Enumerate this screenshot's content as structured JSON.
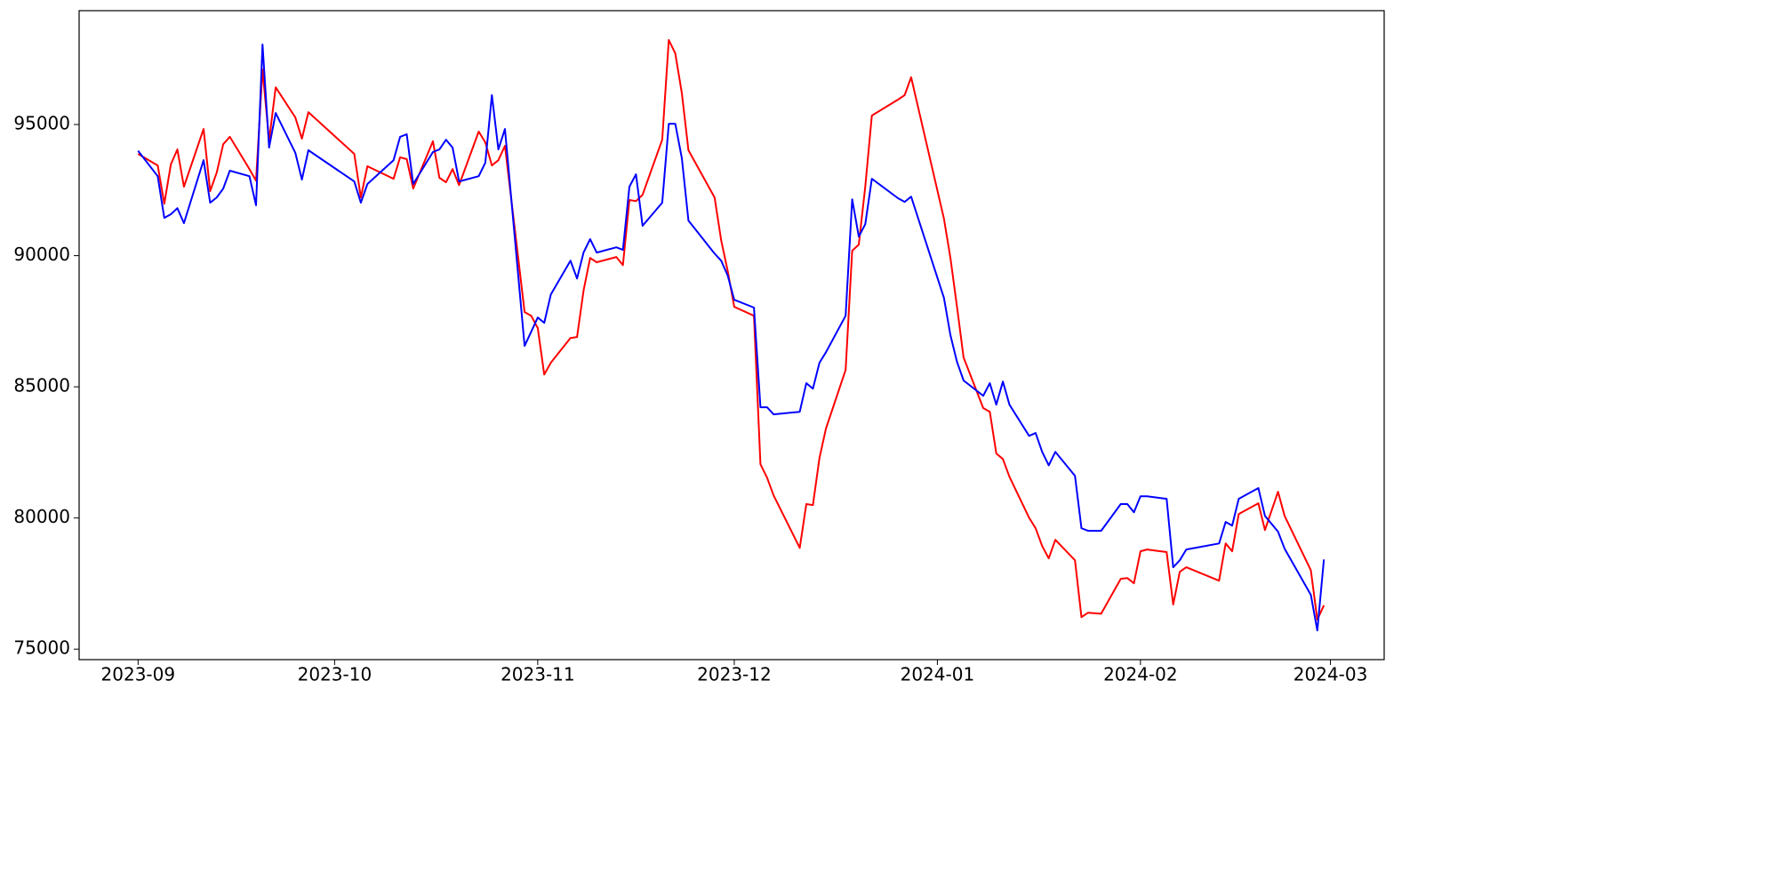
{
  "chart_data": {
    "type": "line",
    "x": [
      0,
      3,
      4,
      5,
      6,
      7,
      10,
      11,
      12,
      13,
      14,
      17,
      18,
      19,
      20,
      21,
      24,
      25,
      26,
      33,
      34,
      35,
      39,
      40,
      41,
      42,
      45,
      46,
      47,
      48,
      49,
      52,
      53,
      54,
      55,
      56,
      59,
      60,
      61,
      62,
      63,
      66,
      67,
      68,
      69,
      70,
      73,
      74,
      75,
      76,
      77,
      80,
      81,
      82,
      83,
      84,
      88,
      89,
      90,
      91,
      94,
      95,
      96,
      97,
      101,
      102,
      103,
      104,
      105,
      108,
      109,
      110,
      111,
      112,
      116,
      117,
      118,
      123,
      124,
      125,
      126,
      129,
      130,
      131,
      132,
      133,
      136,
      137,
      138,
      139,
      140,
      143,
      144,
      145,
      147,
      150,
      151,
      152,
      153,
      154,
      157,
      158,
      159,
      160,
      165,
      166,
      167,
      168,
      171,
      172,
      174,
      175,
      179,
      180,
      181
    ],
    "series": [
      {
        "color": "#ff0000",
        "values": [
          93880,
          93440,
          91980,
          93480,
          94050,
          92630,
          94830,
          92460,
          93170,
          94250,
          94530,
          93300,
          92860,
          97100,
          94390,
          96420,
          95270,
          94460,
          95470,
          93880,
          92220,
          93410,
          92930,
          93750,
          93680,
          92560,
          94360,
          92970,
          92800,
          93300,
          92690,
          94730,
          94320,
          93440,
          93640,
          94190,
          87850,
          87710,
          87240,
          85470,
          85920,
          86860,
          86900,
          88660,
          89910,
          89750,
          89950,
          89640,
          92120,
          92080,
          92320,
          94420,
          98220,
          97710,
          96190,
          94020,
          92220,
          90590,
          89410,
          88050,
          87710,
          82050,
          81540,
          80860,
          78860,
          80530,
          80490,
          82290,
          83410,
          85640,
          90190,
          90420,
          92630,
          95340,
          95950,
          96120,
          96800,
          91410,
          89910,
          88050,
          86120,
          84190,
          84050,
          82460,
          82250,
          81570,
          80010,
          79610,
          78930,
          78460,
          79170,
          78390,
          76220,
          76390,
          76350,
          77680,
          77710,
          77510,
          78730,
          78800,
          78700,
          76700,
          77950,
          78120,
          77610,
          79030,
          78730,
          80150,
          80560,
          79540,
          81000,
          80080,
          78010,
          76120,
          76670
        ]
      },
      {
        "color": "#0000ff",
        "values": [
          94000,
          93030,
          91440,
          91580,
          91810,
          91240,
          93640,
          92020,
          92220,
          92560,
          93240,
          93030,
          91920,
          98050,
          94120,
          95440,
          93920,
          92900,
          94020,
          92830,
          92020,
          92730,
          93640,
          94530,
          94630,
          92730,
          93950,
          94050,
          94420,
          94120,
          92830,
          93030,
          93540,
          96120,
          94050,
          94830,
          86560,
          87100,
          87640,
          87440,
          88520,
          89810,
          89130,
          90120,
          90630,
          90120,
          90320,
          90220,
          92630,
          93100,
          91140,
          92020,
          95030,
          95030,
          93710,
          91340,
          90080,
          89810,
          89240,
          88320,
          88020,
          84220,
          84220,
          83950,
          84050,
          85140,
          84930,
          85920,
          86320,
          87710,
          92150,
          90730,
          91200,
          92930,
          92190,
          92050,
          92250,
          88390,
          86970,
          85950,
          85240,
          84660,
          85140,
          84320,
          85200,
          84320,
          83130,
          83240,
          82520,
          82010,
          82520,
          81610,
          79610,
          79510,
          79510,
          80530,
          80530,
          80220,
          80830,
          80830,
          80730,
          78120,
          78390,
          78800,
          79030,
          79850,
          79710,
          80730,
          81140,
          80080,
          79480,
          78830,
          77070,
          75710,
          78420
        ]
      }
    ],
    "xlim": [
      -9,
      190.2
    ],
    "xticks": [
      {
        "value": 0,
        "label": "2023-09"
      },
      {
        "value": 30,
        "label": "2023-10"
      },
      {
        "value": 61,
        "label": "2023-11"
      },
      {
        "value": 91,
        "label": "2023-12"
      },
      {
        "value": 122,
        "label": "2024-01"
      },
      {
        "value": 153,
        "label": "2024-02"
      },
      {
        "value": 182,
        "label": "2024-03"
      }
    ],
    "ylim": [
      74600,
      99340
    ],
    "yticks": [
      75000,
      80000,
      85000,
      90000,
      95000
    ],
    "grid": false
  }
}
